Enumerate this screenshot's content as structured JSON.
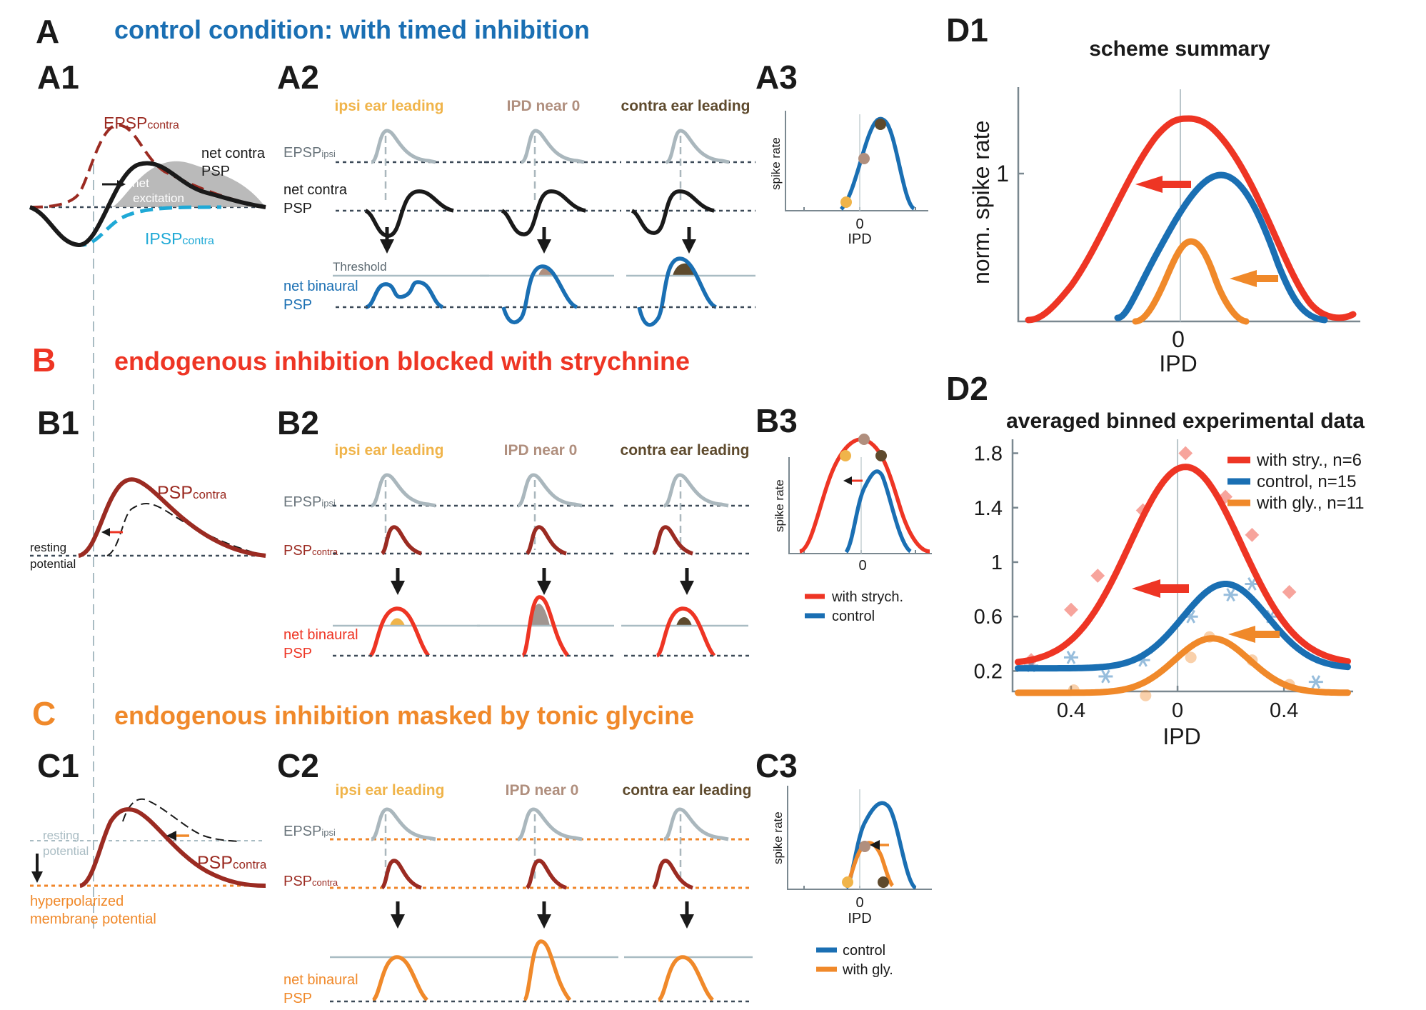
{
  "colors": {
    "control": "#1a6fb3",
    "strychnine": "#ee3524",
    "glycine": "#f0892a",
    "dark_red": "#9b2b22",
    "gray_epsp": "#aab7bd",
    "black": "#1a1a1a",
    "ipsi": "#f0b44a",
    "near0": "#b08f7e",
    "contra": "#5e4a2d",
    "ipsp": "#1fa9d6"
  },
  "panelA": {
    "label": "A",
    "title": "control condition: with timed inhibition",
    "A1": {
      "label": "A1",
      "epsp": "EPSP",
      "epsp_sub": "contra",
      "net_contra_1": "net contra",
      "net_contra_2": "PSP",
      "net_exc_1": "net",
      "net_exc_2": "excitation",
      "ipsp": "IPSP",
      "ipsp_sub": "contra"
    },
    "A2": {
      "label": "A2",
      "columns": [
        "ipsi ear leading",
        "IPD near 0",
        "contra ear leading"
      ],
      "epsp_ipsi": "EPSP",
      "epsp_ipsi_sub": "ipsi",
      "net_contra_1": "net contra",
      "net_contra_2": "PSP",
      "threshold": "Threshold",
      "net_binaural_1": "net binaural",
      "net_binaural_2": "PSP"
    },
    "A3": {
      "label": "A3",
      "ylabel": "spike rate",
      "zero": "0",
      "xlabel": "IPD"
    }
  },
  "panelB": {
    "label": "B",
    "title": "endogenous inhibition blocked with strychnine",
    "B1": {
      "label": "B1",
      "psp": "PSP",
      "psp_sub": "contra",
      "resting_1": "resting",
      "resting_2": "potential"
    },
    "B2": {
      "label": "B2",
      "columns": [
        "ipsi ear leading",
        "IPD near 0",
        "contra ear leading"
      ],
      "epsp_ipsi": "EPSP",
      "epsp_ipsi_sub": "ipsi",
      "psp_contra": "PSP",
      "psp_contra_sub": "contra",
      "net_binaural_1": "net binaural",
      "net_binaural_2": "PSP"
    },
    "B3": {
      "label": "B3",
      "ylabel": "spike rate",
      "zero": "0",
      "legend": [
        "with strych.",
        "control"
      ]
    }
  },
  "panelC": {
    "label": "C",
    "title": "endogenous inhibition masked by tonic glycine",
    "C1": {
      "label": "C1",
      "resting_1": "resting",
      "resting_2": "potential",
      "psp": "PSP",
      "psp_sub": "contra",
      "hyper_1": "hyperpolarized",
      "hyper_2": "membrane potential"
    },
    "C2": {
      "label": "C2",
      "columns": [
        "ipsi ear leading",
        "IPD near 0",
        "contra ear leading"
      ],
      "epsp_ipsi": "EPSP",
      "epsp_ipsi_sub": "ipsi",
      "psp_contra": "PSP",
      "psp_contra_sub": "contra",
      "net_binaural_1": "net binaural",
      "net_binaural_2": "PSP"
    },
    "C3": {
      "label": "C3",
      "ylabel": "spike rate",
      "zero": "0",
      "xlabel": "IPD",
      "legend": [
        "control",
        "with gly."
      ]
    }
  },
  "panelD1": {
    "label": "D1",
    "title": "scheme summary",
    "ylabel": "norm. spike rate",
    "ytick": "1",
    "xtick": "0",
    "xlabel": "IPD"
  },
  "chart_data": {
    "type": "line",
    "title": "averaged binned experimental data",
    "xlabel": "IPD",
    "ylabel": "",
    "x_ticks": [
      -0.4,
      0,
      0.4
    ],
    "x_tick_labels": [
      "0.4",
      "0",
      "0.4"
    ],
    "y_ticks": [
      0.2,
      0.6,
      1,
      1.4,
      1.8
    ],
    "y_tick_labels": [
      "0.2",
      "0.6",
      "1",
      "1.4",
      "1.8"
    ],
    "xlim": [
      -0.62,
      0.66
    ],
    "ylim": [
      0.05,
      1.85
    ],
    "legend_position": "top-right",
    "panel_label": "D2",
    "series": [
      {
        "name": "with stry., n=6",
        "color": "#ee3524",
        "fit": {
          "baseline": 0.25,
          "amp": 1.45,
          "center": 0.03,
          "sigma": 0.21
        },
        "points_x": [
          -0.55,
          -0.4,
          -0.3,
          -0.13,
          0.03,
          0.18,
          0.28,
          0.42
        ],
        "points_y": [
          0.28,
          0.65,
          0.9,
          1.38,
          1.8,
          1.48,
          1.2,
          0.78
        ]
      },
      {
        "name": "control, n=15",
        "color": "#1a6fb3",
        "fit": {
          "baseline": 0.22,
          "amp": 0.62,
          "center": 0.18,
          "sigma": 0.16
        },
        "points_x": [
          -0.55,
          -0.4,
          -0.27,
          -0.13,
          0.05,
          0.2,
          0.28,
          0.35,
          0.52
        ],
        "points_y": [
          0.24,
          0.3,
          0.16,
          0.28,
          0.6,
          0.76,
          0.84,
          0.6,
          0.12
        ]
      },
      {
        "name": "with gly., n=11",
        "color": "#f0892a",
        "fit": {
          "baseline": 0.04,
          "amp": 0.4,
          "center": 0.13,
          "sigma": 0.14
        },
        "points_x": [
          -0.39,
          -0.12,
          0.05,
          0.12,
          0.28,
          0.42
        ],
        "points_y": [
          0.06,
          0.02,
          0.3,
          0.45,
          0.28,
          0.1
        ]
      }
    ]
  }
}
